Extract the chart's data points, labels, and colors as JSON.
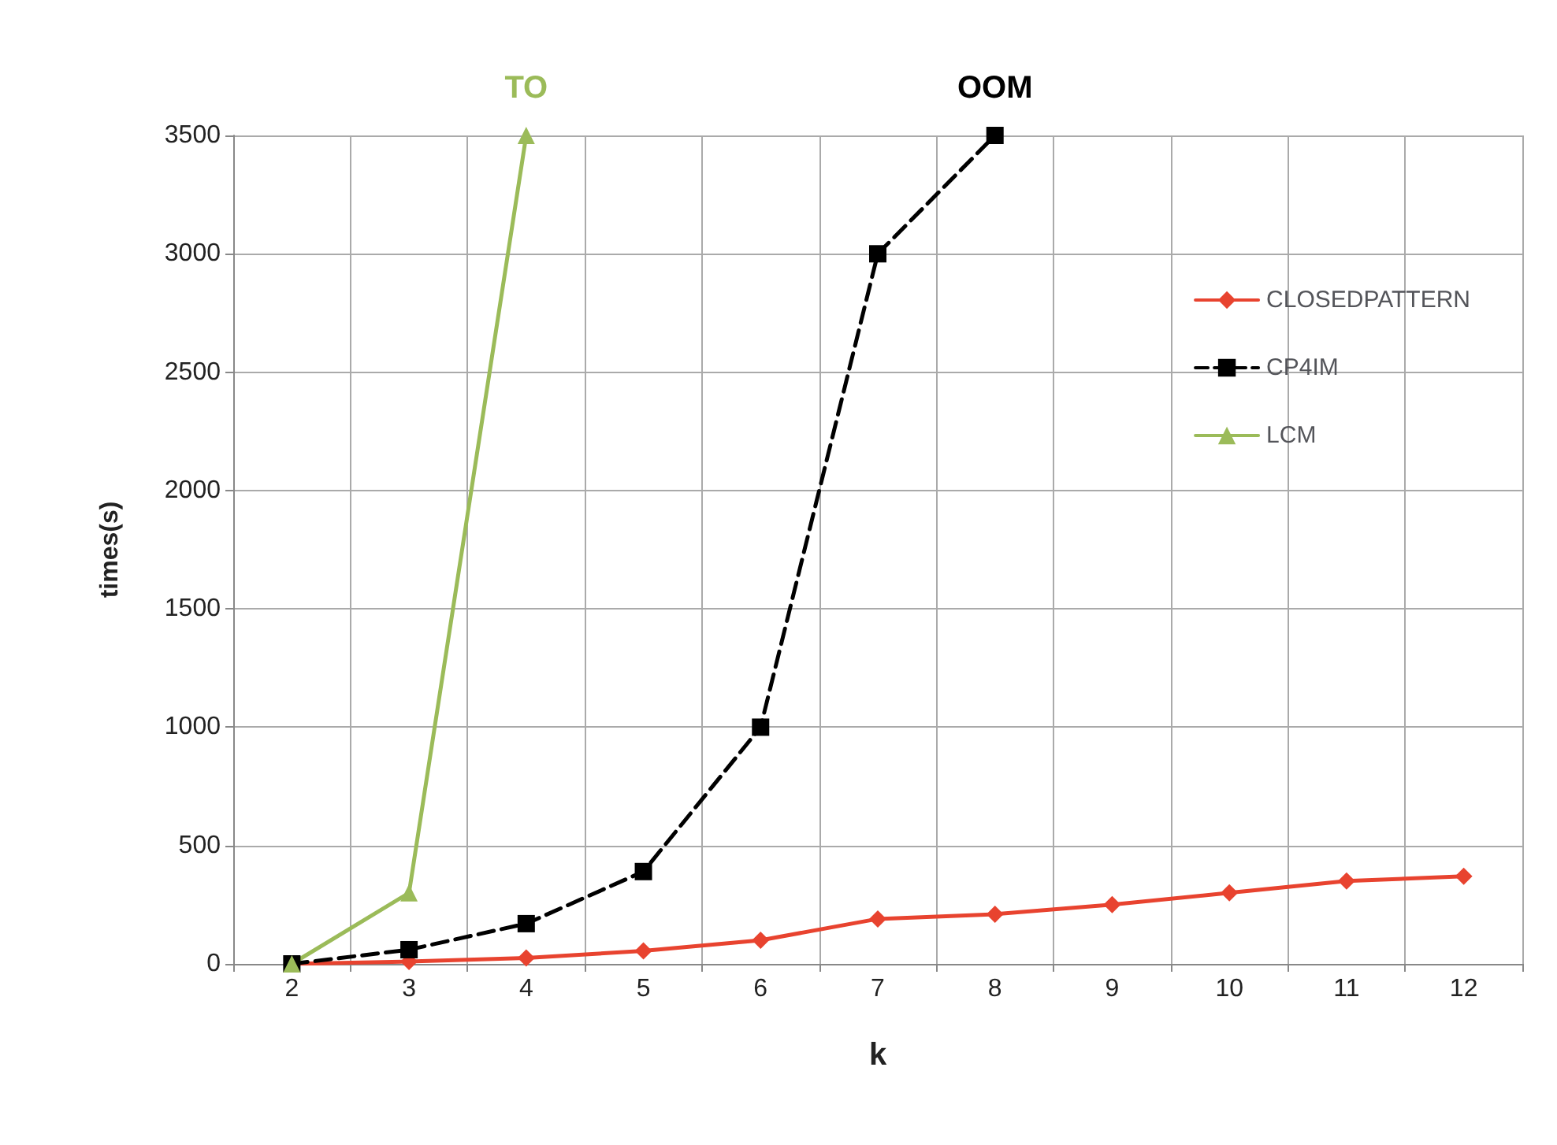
{
  "chart_data": {
    "type": "line",
    "xlabel": "k",
    "ylabel": "times(s)",
    "categories": [
      "2",
      "3",
      "4",
      "5",
      "6",
      "7",
      "8",
      "9",
      "10",
      "11",
      "12"
    ],
    "series": [
      {
        "name": "CLOSEDPATTERN",
        "color": "#e8432f",
        "marker": "diamond",
        "line_style": "solid",
        "values": [
          0,
          10,
          25,
          55,
          100,
          190,
          210,
          250,
          300,
          350,
          370
        ]
      },
      {
        "name": "CP4IM",
        "color": "#000000",
        "marker": "square",
        "line_style": "dashed",
        "values": [
          0,
          60,
          170,
          390,
          1000,
          3000,
          3500,
          null,
          null,
          null,
          null
        ]
      },
      {
        "name": "LCM",
        "color": "#9bbb59",
        "marker": "triangle",
        "line_style": "solid",
        "values": [
          0,
          300,
          3500,
          null,
          null,
          null,
          null,
          null,
          null,
          null,
          null
        ]
      }
    ],
    "ylim": [
      0,
      3500
    ],
    "yticks": [
      0,
      500,
      1000,
      1500,
      2000,
      2500,
      3000,
      3500
    ],
    "grid": true,
    "legend": "right",
    "annotations": [
      {
        "text": "TO",
        "x": "4",
        "y": 3500
      },
      {
        "text": "OOM",
        "x": "8",
        "y": 3500
      }
    ]
  }
}
